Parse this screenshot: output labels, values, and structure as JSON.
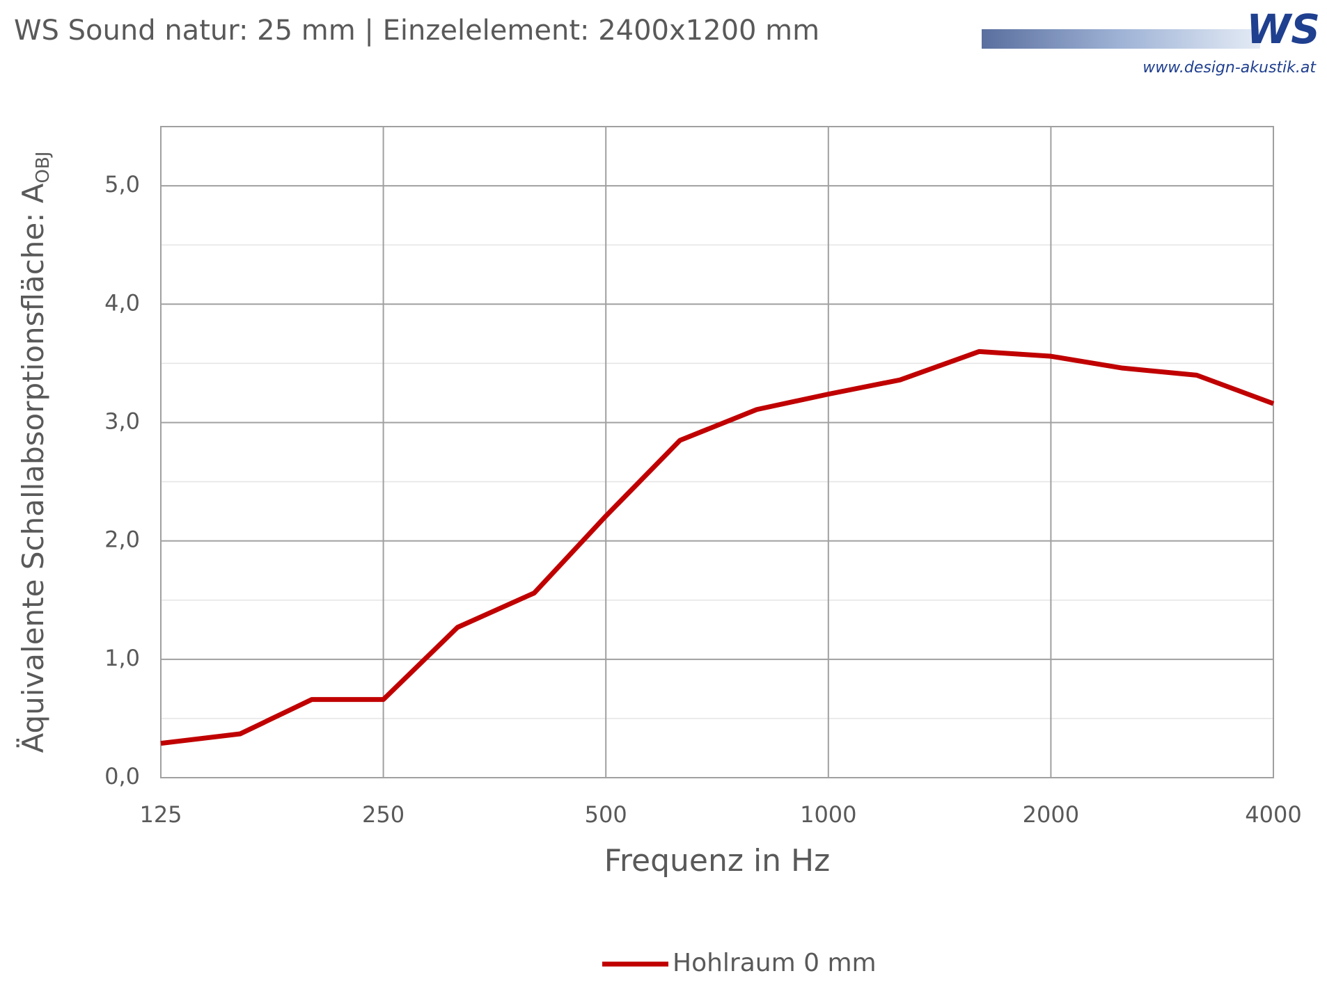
{
  "chart_data": {
    "type": "line",
    "title": "WS Sound natur: 25 mm | Einzelelement: 2400x1200 mm",
    "x_label": "Frequenz in Hz",
    "y_label": "Äquivalente Schallabsorptionsfläche: A",
    "y_label_sub": "OBJ",
    "x": [
      125,
      160,
      200,
      250,
      315,
      400,
      500,
      630,
      800,
      1000,
      1250,
      1600,
      2000,
      2500,
      3150,
      4000
    ],
    "series": [
      {
        "name": "Hohlraum 0 mm",
        "color": "#c00000",
        "values": [
          0.29,
          0.37,
          0.66,
          0.66,
          1.27,
          1.56,
          2.21,
          2.85,
          3.11,
          3.24,
          3.36,
          3.6,
          3.56,
          3.46,
          3.4,
          3.16
        ]
      }
    ],
    "xscale": "log",
    "xlim": [
      125,
      4000
    ],
    "xticks": [
      125,
      250,
      500,
      1000,
      2000,
      4000
    ],
    "ylim": [
      0,
      5.5
    ],
    "yticks": [
      {
        "value": 0,
        "label": "0,0"
      },
      {
        "value": 1,
        "label": "1,0"
      },
      {
        "value": 2,
        "label": "2,0"
      },
      {
        "value": 3,
        "label": "3,0"
      },
      {
        "value": 4,
        "label": "4,0"
      },
      {
        "value": 5,
        "label": "5,0"
      }
    ],
    "minor_yticks": [
      0.5,
      1.5,
      2.5,
      3.5,
      4.5
    ],
    "grid": true,
    "legend": "bottom"
  },
  "logo": {
    "mark": "WS",
    "url": "www.design-akustik.at"
  }
}
